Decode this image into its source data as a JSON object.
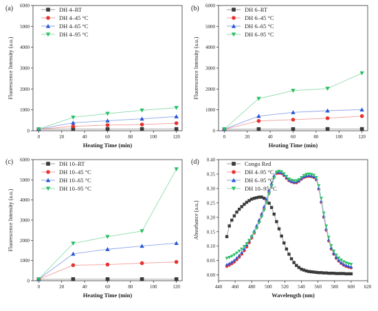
{
  "colors": {
    "black": "#3a3a3a",
    "red": "#e8322f",
    "blue": "#2a56d6",
    "green": "#2bbf64",
    "line_black": "#9a9a9a",
    "line_red": "#f29d9a",
    "line_blue": "#8ea4ea",
    "line_green": "#8fdcaa"
  },
  "chart_data": [
    {
      "type": "line",
      "panel_label": "(a)",
      "xlabel": "Heating Time (min)",
      "ylabel": "Fluorescence Intensity (a.u.)",
      "xlim": [
        -5,
        125
      ],
      "ylim": [
        0,
        6000
      ],
      "xticks": [
        0,
        20,
        40,
        60,
        80,
        100,
        120
      ],
      "yticks": [
        0,
        1000,
        2000,
        3000,
        4000,
        5000,
        6000
      ],
      "x": [
        0,
        30,
        60,
        90,
        120
      ],
      "legend": "top-left",
      "series": [
        {
          "name": "DH 4–RT",
          "marker": "square",
          "color": "black",
          "values": [
            70,
            80,
            75,
            80,
            80
          ]
        },
        {
          "name": "DH 4–45 °C",
          "marker": "circle",
          "color": "red",
          "values": [
            70,
            210,
            270,
            300,
            360
          ]
        },
        {
          "name": "DH 4–65 °C",
          "marker": "triangle-up",
          "color": "blue",
          "values": [
            75,
            380,
            480,
            570,
            680
          ]
        },
        {
          "name": "DH 4–95 °C",
          "marker": "triangle-down",
          "color": "green",
          "values": [
            80,
            640,
            820,
            980,
            1100
          ]
        }
      ]
    },
    {
      "type": "line",
      "panel_label": "(b)",
      "xlabel": "Heating Time (min)",
      "ylabel": "Fluorescence Intensity (a.u.)",
      "xlim": [
        -5,
        125
      ],
      "ylim": [
        0,
        6000
      ],
      "xticks": [
        0,
        20,
        40,
        60,
        80,
        100,
        120
      ],
      "yticks": [
        0,
        1000,
        2000,
        3000,
        4000,
        5000,
        6000
      ],
      "x": [
        0,
        30,
        60,
        90,
        120
      ],
      "legend": "top-left",
      "series": [
        {
          "name": "DH 6–RT",
          "marker": "square",
          "color": "black",
          "values": [
            70,
            75,
            75,
            80,
            80
          ]
        },
        {
          "name": "DH 6–45 °C",
          "marker": "circle",
          "color": "red",
          "values": [
            70,
            470,
            530,
            600,
            700
          ]
        },
        {
          "name": "DH 6–65 °C",
          "marker": "triangle-up",
          "color": "blue",
          "values": [
            75,
            700,
            880,
            960,
            1010
          ]
        },
        {
          "name": "DH 6–95 °C",
          "marker": "triangle-down",
          "color": "green",
          "values": [
            80,
            1540,
            1920,
            2020,
            2760
          ]
        }
      ]
    },
    {
      "type": "line",
      "panel_label": "(c)",
      "xlabel": "Heating Time (min)",
      "ylabel": "Fluorescence Intensity (a.u.)",
      "xlim": [
        -5,
        125
      ],
      "ylim": [
        0,
        6000
      ],
      "xticks": [
        0,
        20,
        40,
        60,
        80,
        100,
        120
      ],
      "yticks": [
        0,
        1000,
        2000,
        3000,
        4000,
        5000,
        6000
      ],
      "x": [
        0,
        30,
        60,
        90,
        120
      ],
      "legend": "top-left",
      "series": [
        {
          "name": "DH 10–RT",
          "marker": "square",
          "color": "black",
          "values": [
            70,
            75,
            75,
            75,
            75
          ]
        },
        {
          "name": "DH 10–45 °C",
          "marker": "circle",
          "color": "red",
          "values": [
            70,
            770,
            800,
            870,
            930
          ]
        },
        {
          "name": "DH 10–65 °C",
          "marker": "triangle-up",
          "color": "blue",
          "values": [
            75,
            1330,
            1560,
            1720,
            1860
          ]
        },
        {
          "name": "DH 10–95 °C",
          "marker": "triangle-down",
          "color": "green",
          "values": [
            80,
            1850,
            2180,
            2460,
            5530
          ]
        }
      ]
    },
    {
      "type": "line",
      "panel_label": "(d)",
      "xlabel": "Wavelength (nm)",
      "ylabel": "Absorbance (a.u.)",
      "xlim": [
        440,
        620
      ],
      "ylim": [
        -0.02,
        0.4
      ],
      "xticks": [
        440,
        460,
        480,
        500,
        520,
        540,
        560,
        580,
        600,
        620
      ],
      "yticks": [
        0.0,
        0.05,
        0.1,
        0.15,
        0.2,
        0.25,
        0.3,
        0.35,
        0.4
      ],
      "ytick_labels": [
        "0.00",
        "0.05",
        "0.10",
        "0.15",
        "0.20",
        "0.25",
        "0.30",
        "0.35",
        "0.40"
      ],
      "x": [
        450,
        453,
        456,
        459,
        462,
        465,
        468,
        471,
        474,
        477,
        480,
        483,
        486,
        489,
        492,
        495,
        498,
        501,
        504,
        507,
        510,
        513,
        516,
        519,
        522,
        525,
        528,
        531,
        534,
        537,
        540,
        543,
        546,
        549,
        552,
        555,
        558,
        561,
        564,
        567,
        570,
        573,
        576,
        579,
        582,
        585,
        588,
        591,
        594,
        597,
        600
      ],
      "legend": "top-left",
      "series": [
        {
          "name": "Congo Red",
          "marker": "square",
          "color": "black",
          "values": [
            0.133,
            0.17,
            0.19,
            0.205,
            0.218,
            0.228,
            0.237,
            0.245,
            0.252,
            0.258,
            0.263,
            0.266,
            0.268,
            0.27,
            0.27,
            0.266,
            0.258,
            0.249,
            0.234,
            0.211,
            0.185,
            0.16,
            0.135,
            0.111,
            0.09,
            0.072,
            0.056,
            0.043,
            0.033,
            0.026,
            0.02,
            0.017,
            0.014,
            0.012,
            0.011,
            0.01,
            0.009,
            0.008,
            0.008,
            0.007,
            0.007,
            0.006,
            0.006,
            0.006,
            0.005,
            0.005,
            0.005,
            0.005,
            0.004,
            0.004,
            0.004
          ]
        },
        {
          "name": "DH 4–95 °C",
          "marker": "circle",
          "color": "red",
          "values": [
            0.03,
            0.034,
            0.039,
            0.045,
            0.053,
            0.062,
            0.072,
            0.084,
            0.097,
            0.112,
            0.128,
            0.145,
            0.164,
            0.184,
            0.206,
            0.23,
            0.258,
            0.288,
            0.312,
            0.34,
            0.352,
            0.353,
            0.352,
            0.345,
            0.335,
            0.327,
            0.323,
            0.32,
            0.32,
            0.325,
            0.332,
            0.338,
            0.341,
            0.342,
            0.341,
            0.338,
            0.33,
            0.298,
            0.252,
            0.2,
            0.155,
            0.118,
            0.09,
            0.072,
            0.058,
            0.048,
            0.04,
            0.034,
            0.03,
            0.027,
            0.025
          ]
        },
        {
          "name": "DH 6–95 °C",
          "marker": "triangle-up",
          "color": "blue",
          "values": [
            0.036,
            0.04,
            0.045,
            0.051,
            0.059,
            0.068,
            0.078,
            0.09,
            0.104,
            0.119,
            0.135,
            0.152,
            0.171,
            0.191,
            0.213,
            0.237,
            0.263,
            0.292,
            0.318,
            0.344,
            0.356,
            0.357,
            0.355,
            0.348,
            0.338,
            0.329,
            0.325,
            0.323,
            0.323,
            0.327,
            0.335,
            0.341,
            0.344,
            0.345,
            0.344,
            0.341,
            0.333,
            0.3,
            0.256,
            0.205,
            0.16,
            0.122,
            0.094,
            0.075,
            0.061,
            0.051,
            0.043,
            0.037,
            0.033,
            0.03,
            0.028
          ]
        },
        {
          "name": "DH 10–95 °C",
          "marker": "triangle-down",
          "color": "green",
          "values": [
            0.058,
            0.061,
            0.065,
            0.07,
            0.076,
            0.083,
            0.09,
            0.099,
            0.109,
            0.12,
            0.133,
            0.147,
            0.163,
            0.181,
            0.201,
            0.224,
            0.25,
            0.28,
            0.308,
            0.336,
            0.357,
            0.36,
            0.358,
            0.351,
            0.342,
            0.333,
            0.329,
            0.327,
            0.327,
            0.331,
            0.338,
            0.345,
            0.349,
            0.35,
            0.349,
            0.346,
            0.338,
            0.31,
            0.266,
            0.215,
            0.17,
            0.131,
            0.102,
            0.083,
            0.069,
            0.059,
            0.052,
            0.046,
            0.042,
            0.039,
            0.037
          ]
        }
      ]
    }
  ]
}
